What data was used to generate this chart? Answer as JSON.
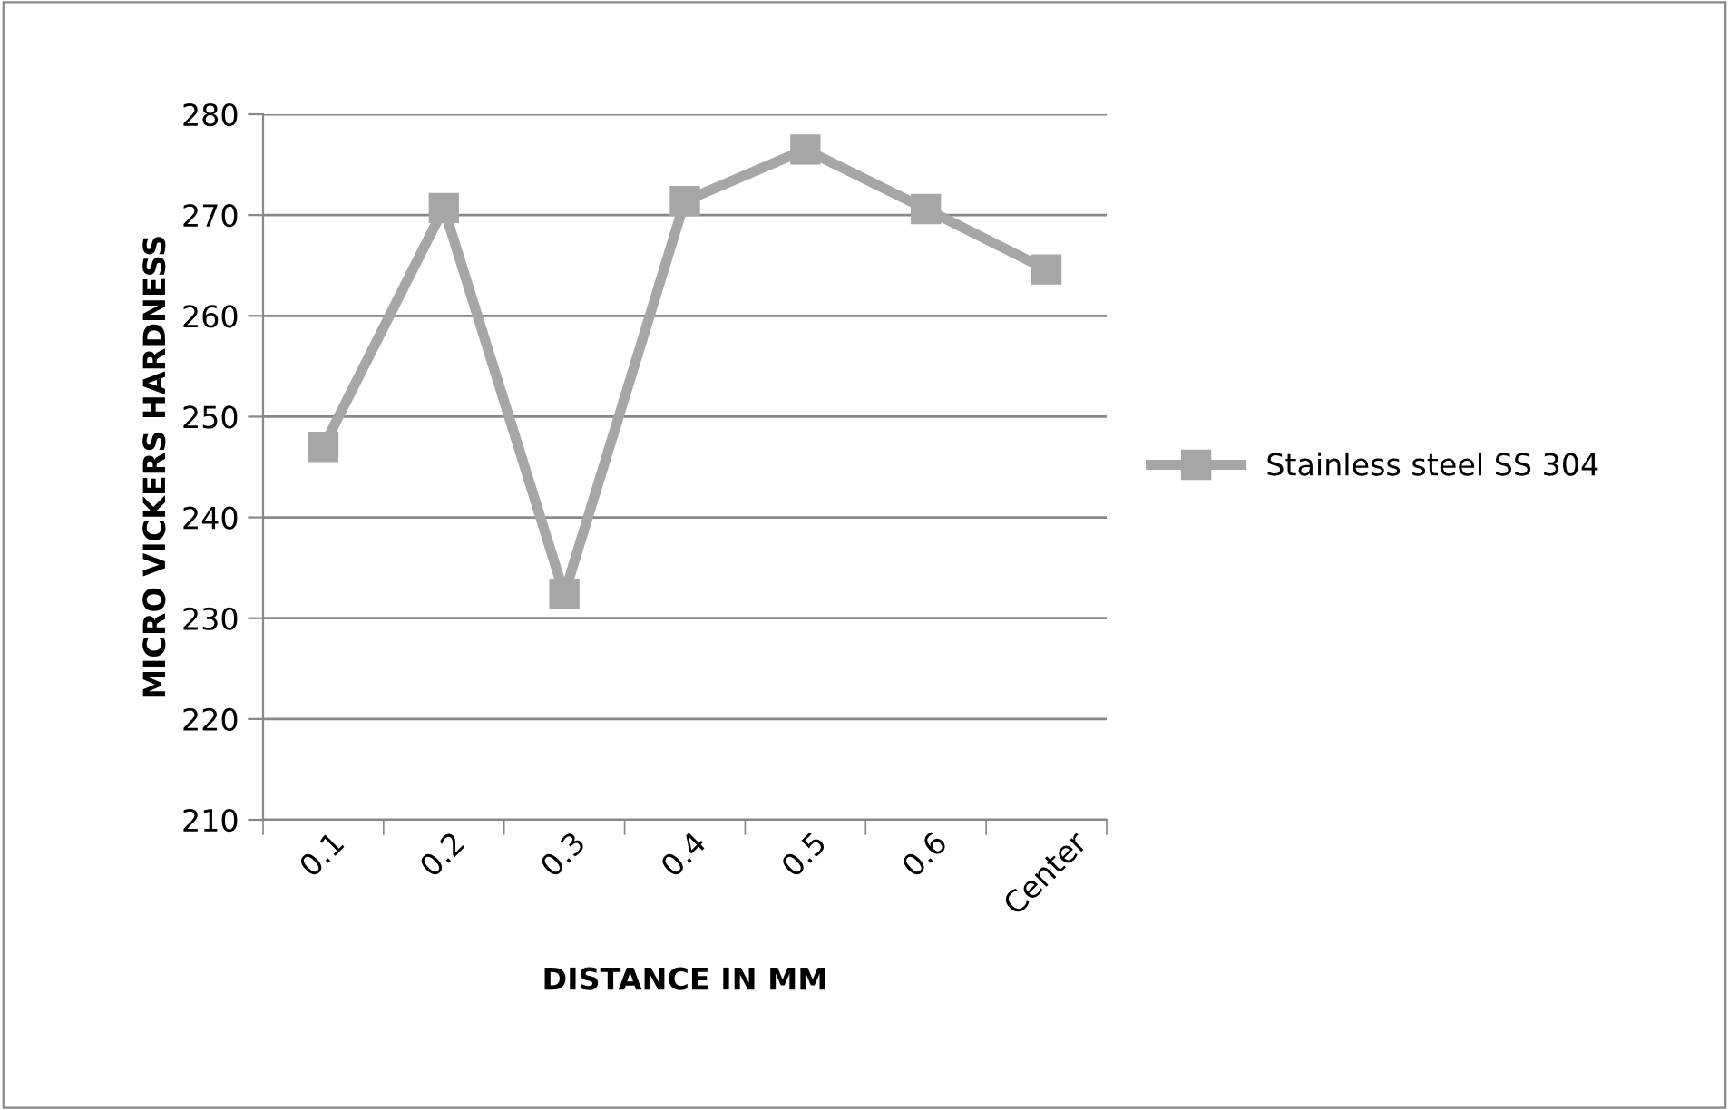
{
  "chart_data": {
    "type": "line",
    "xlabel": "DISTANCE IN MM",
    "ylabel": "MICRO VICKERS HARDNESS",
    "categories": [
      "0.1",
      "0.2",
      "0.3",
      "0.4",
      "0.5",
      "0.6",
      "Center"
    ],
    "series": [
      {
        "name": "Stainless steel SS 304",
        "color": "#a6a6a6",
        "values": [
          247.0,
          270.7,
          232.4,
          271.4,
          276.5,
          270.6,
          264.6
        ]
      }
    ],
    "ylim": [
      210,
      280
    ],
    "yticks": [
      210,
      220,
      230,
      240,
      250,
      260,
      270,
      280
    ],
    "grid": "y",
    "legend": "right",
    "marker": "square",
    "line_style": "solid"
  }
}
